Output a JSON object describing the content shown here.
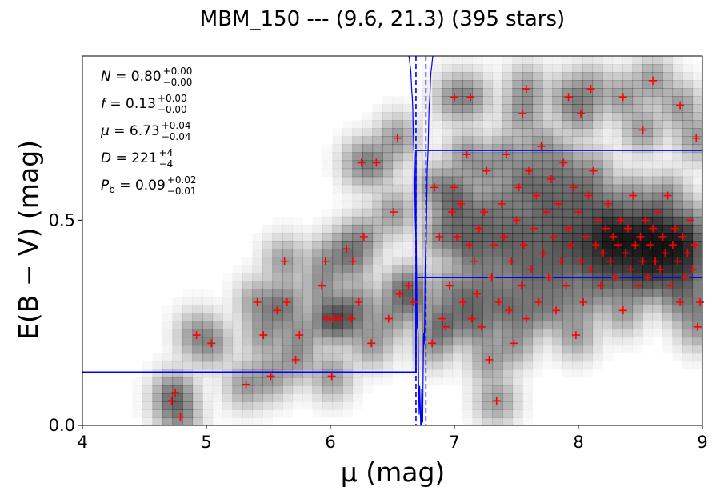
{
  "chart_data": {
    "type": "scatter",
    "title": "MBM_150 --- (9.6, 21.3) (395 stars)",
    "xlabel": "μ (mag)",
    "ylabel": "E(B − V) (mag)",
    "xlim": [
      4,
      9
    ],
    "ylim": [
      0,
      0.9
    ],
    "x_ticks": [
      "4",
      "5",
      "6",
      "7",
      "8",
      "9"
    ],
    "y_ticks": [
      "0.0",
      "0.5"
    ],
    "grid": false,
    "colors": {
      "points": "#ff0000",
      "lines": "#0000ff",
      "density": "#000000"
    },
    "annotations": [
      {
        "name": "N",
        "value": "0.80",
        "upper": "+0.00",
        "lower": "−0.00"
      },
      {
        "name": "f",
        "value": "0.13",
        "upper": "+0.00",
        "lower": "−0.00"
      },
      {
        "name": "μ",
        "value": "6.73",
        "upper": "+0.04",
        "lower": "−0.04"
      },
      {
        "name": "D",
        "value": "221",
        "upper": "+4",
        "lower": "−4"
      },
      {
        "name": "P_b",
        "value": "0.09",
        "upper": "+0.02",
        "lower": "−0.01"
      }
    ],
    "best_fit_distance": 6.73,
    "distance_bounds": [
      6.69,
      6.77
    ],
    "foreground_extinction": 0.13,
    "background_extinction_bounds": [
      0.36,
      0.67
    ],
    "stars": [
      [
        4.72,
        0.06
      ],
      [
        4.75,
        0.08
      ],
      [
        4.79,
        0.02
      ],
      [
        4.92,
        0.22
      ],
      [
        5.04,
        0.2
      ],
      [
        5.32,
        0.1
      ],
      [
        5.41,
        0.3
      ],
      [
        5.46,
        0.22
      ],
      [
        5.52,
        0.12
      ],
      [
        5.57,
        0.28
      ],
      [
        5.63,
        0.4
      ],
      [
        5.65,
        0.3
      ],
      [
        5.72,
        0.16
      ],
      [
        5.75,
        0.22
      ],
      [
        5.93,
        0.34
      ],
      [
        5.96,
        0.4
      ],
      [
        5.97,
        0.26
      ],
      [
        6.01,
        0.12
      ],
      [
        6.02,
        0.26
      ],
      [
        6.07,
        0.26
      ],
      [
        6.13,
        0.43
      ],
      [
        6.17,
        0.26
      ],
      [
        6.18,
        0.4
      ],
      [
        6.23,
        0.3
      ],
      [
        6.25,
        0.64
      ],
      [
        6.27,
        0.46
      ],
      [
        6.33,
        0.2
      ],
      [
        6.37,
        0.64
      ],
      [
        6.47,
        0.26
      ],
      [
        6.51,
        0.52
      ],
      [
        6.54,
        0.7
      ],
      [
        6.56,
        0.32
      ],
      [
        6.63,
        0.34
      ],
      [
        6.67,
        0.3
      ],
      [
        6.82,
        0.2
      ],
      [
        6.84,
        0.58
      ],
      [
        6.88,
        0.46
      ],
      [
        6.9,
        0.26
      ],
      [
        6.93,
        0.24
      ],
      [
        6.96,
        0.34
      ],
      [
        6.98,
        0.52
      ],
      [
        7.0,
        0.58
      ],
      [
        7.02,
        0.46
      ],
      [
        7.05,
        0.54
      ],
      [
        7.07,
        0.3
      ],
      [
        7.1,
        0.66
      ],
      [
        7.12,
        0.44
      ],
      [
        7.14,
        0.26
      ],
      [
        7.16,
        0.4
      ],
      [
        7.18,
        0.32
      ],
      [
        7.2,
        0.48
      ],
      [
        7.22,
        0.24
      ],
      [
        7.24,
        0.52
      ],
      [
        7.26,
        0.62
      ],
      [
        7.28,
        0.16
      ],
      [
        7.3,
        0.36
      ],
      [
        7.32,
        0.44
      ],
      [
        7.34,
        0.06
      ],
      [
        7.36,
        0.3
      ],
      [
        7.38,
        0.54
      ],
      [
        7.4,
        0.46
      ],
      [
        7.42,
        0.66
      ],
      [
        7.44,
        0.28
      ],
      [
        7.46,
        0.4
      ],
      [
        7.48,
        0.2
      ],
      [
        7.5,
        0.5
      ],
      [
        7.52,
        0.58
      ],
      [
        7.54,
        0.34
      ],
      [
        7.56,
        0.44
      ],
      [
        7.58,
        0.26
      ],
      [
        7.6,
        0.62
      ],
      [
        7.62,
        0.38
      ],
      [
        7.64,
        0.48
      ],
      [
        7.66,
        0.56
      ],
      [
        7.68,
        0.3
      ],
      [
        7.7,
        0.68
      ],
      [
        7.72,
        0.42
      ],
      [
        7.74,
        0.52
      ],
      [
        7.76,
        0.36
      ],
      [
        7.78,
        0.6
      ],
      [
        7.8,
        0.46
      ],
      [
        7.82,
        0.28
      ],
      [
        7.84,
        0.54
      ],
      [
        7.86,
        0.4
      ],
      [
        7.88,
        0.64
      ],
      [
        7.9,
        0.34
      ],
      [
        7.92,
        0.48
      ],
      [
        7.94,
        0.44
      ],
      [
        7.96,
        0.58
      ],
      [
        7.98,
        0.22
      ],
      [
        8.0,
        0.52
      ],
      [
        8.02,
        0.4
      ],
      [
        8.04,
        0.3
      ],
      [
        8.06,
        0.46
      ],
      [
        8.08,
        0.56
      ],
      [
        8.1,
        0.38
      ],
      [
        8.12,
        0.62
      ],
      [
        8.14,
        0.44
      ],
      [
        8.16,
        0.5
      ],
      [
        8.18,
        0.34
      ],
      [
        8.2,
        0.42
      ],
      [
        8.22,
        0.48
      ],
      [
        8.24,
        0.54
      ],
      [
        8.26,
        0.4
      ],
      [
        8.28,
        0.46
      ],
      [
        8.3,
        0.36
      ],
      [
        8.32,
        0.44
      ],
      [
        8.34,
        0.5
      ],
      [
        8.36,
        0.28
      ],
      [
        8.38,
        0.42
      ],
      [
        8.4,
        0.48
      ],
      [
        8.42,
        0.38
      ],
      [
        8.44,
        0.56
      ],
      [
        8.46,
        0.44
      ],
      [
        8.48,
        0.34
      ],
      [
        8.5,
        0.46
      ],
      [
        8.52,
        0.4
      ],
      [
        8.54,
        0.5
      ],
      [
        8.56,
        0.36
      ],
      [
        8.58,
        0.44
      ],
      [
        8.6,
        0.48
      ],
      [
        8.62,
        0.4
      ],
      [
        8.64,
        0.52
      ],
      [
        8.66,
        0.38
      ],
      [
        8.68,
        0.46
      ],
      [
        8.7,
        0.42
      ],
      [
        8.72,
        0.56
      ],
      [
        8.74,
        0.34
      ],
      [
        8.76,
        0.44
      ],
      [
        8.78,
        0.48
      ],
      [
        8.8,
        0.4
      ],
      [
        8.82,
        0.3
      ],
      [
        8.84,
        0.46
      ],
      [
        8.86,
        0.36
      ],
      [
        8.88,
        0.42
      ],
      [
        8.9,
        0.5
      ],
      [
        8.92,
        0.38
      ],
      [
        8.94,
        0.44
      ],
      [
        8.96,
        0.24
      ],
      [
        8.98,
        0.3
      ],
      [
        7.0,
        0.8
      ],
      [
        7.13,
        0.8
      ],
      [
        7.55,
        0.76
      ],
      [
        7.58,
        0.82
      ],
      [
        7.92,
        0.8
      ],
      [
        8.02,
        0.76
      ],
      [
        8.1,
        0.82
      ],
      [
        8.36,
        0.8
      ],
      [
        8.52,
        0.72
      ],
      [
        8.6,
        0.84
      ],
      [
        8.82,
        0.78
      ],
      [
        8.95,
        0.7
      ]
    ]
  }
}
